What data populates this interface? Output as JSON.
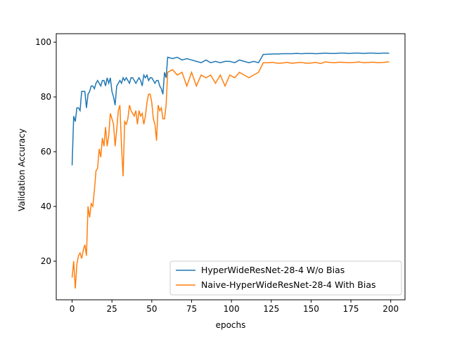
{
  "chart_data": {
    "type": "line",
    "x_label": "epochs",
    "y_label": "Validation Accuracy",
    "x": [
      0,
      1,
      2,
      3,
      4,
      5,
      6,
      7,
      8,
      9,
      10,
      11,
      12,
      13,
      14,
      15,
      16,
      17,
      18,
      19,
      20,
      21,
      22,
      23,
      24,
      25,
      26,
      27,
      28,
      29,
      30,
      31,
      32,
      33,
      34,
      35,
      36,
      37,
      38,
      39,
      40,
      41,
      42,
      43,
      44,
      45,
      46,
      47,
      48,
      49,
      50,
      51,
      52,
      53,
      54,
      55,
      56,
      57,
      58,
      59,
      60,
      63,
      66,
      69,
      72,
      75,
      78,
      81,
      84,
      87,
      90,
      93,
      96,
      99,
      102,
      105,
      108,
      111,
      114,
      117,
      120,
      123,
      126,
      129,
      132,
      135,
      138,
      141,
      144,
      147,
      150,
      153,
      156,
      159,
      162,
      165,
      168,
      171,
      174,
      177,
      180,
      183,
      186,
      189,
      192,
      195,
      198,
      199
    ],
    "series": [
      {
        "name": "HyperWideResNet-28-4 W/o Bias",
        "color": "#1f77b4",
        "values": [
          55,
          73,
          71,
          76,
          76,
          75,
          82,
          82,
          82,
          76,
          81,
          82,
          84,
          84,
          83,
          85,
          86,
          85,
          84,
          86,
          86,
          84,
          87,
          85,
          87,
          82,
          80,
          77,
          84,
          85,
          86,
          85,
          87,
          86,
          87,
          86,
          85,
          87,
          87,
          86,
          85,
          86,
          87,
          86,
          84,
          88,
          87,
          88,
          86,
          87,
          87,
          86,
          85,
          86,
          86,
          84,
          83,
          81,
          89,
          87,
          94.5,
          94,
          94.5,
          93.5,
          94,
          93.5,
          93,
          92.5,
          93.5,
          92.5,
          93,
          92.5,
          93,
          93,
          92.5,
          93.5,
          93,
          92.5,
          93,
          92.5,
          95.5,
          95.6,
          95.7,
          95.7,
          95.8,
          95.8,
          95.8,
          95.9,
          95.8,
          95.9,
          95.9,
          95.8,
          95.9,
          96,
          95.9,
          95.9,
          96,
          96,
          95.9,
          96,
          96,
          95.9,
          96,
          96,
          95.9,
          96,
          96,
          95.9
        ]
      },
      {
        "name": "Naive-HyperWideResNet-28-4 With Bias",
        "color": "#ff7f0e",
        "values": [
          14,
          20,
          10,
          19,
          22,
          23,
          21,
          24,
          26,
          22,
          40,
          36,
          41,
          40,
          46,
          53,
          54,
          61,
          58,
          65,
          62,
          69,
          62,
          66,
          74,
          72,
          70,
          62,
          68,
          75,
          77,
          62,
          51,
          71,
          70,
          72,
          77,
          75,
          74,
          73,
          75,
          70,
          75,
          73,
          74,
          70,
          73,
          78,
          81,
          81,
          78,
          72,
          70,
          64,
          77,
          75,
          76,
          72,
          72,
          77,
          89,
          90,
          88,
          89,
          84,
          89,
          84,
          88,
          87,
          88,
          85,
          88,
          84,
          88,
          87,
          89,
          88,
          87,
          88,
          89,
          92.5,
          92.5,
          92.6,
          92.3,
          92.4,
          92.6,
          92.3,
          92.5,
          92.6,
          92.3,
          92.4,
          92.6,
          92.2,
          92.8,
          92.6,
          92.5,
          92.7,
          92.6,
          92.5,
          92.6,
          92.8,
          92.5,
          92.6,
          92.7,
          92.5,
          92.6,
          92.8,
          92.7
        ]
      }
    ],
    "xlim": [
      -9.95,
      208.95
    ],
    "ylim": [
      5.9,
      103.1
    ],
    "xticks": [
      0,
      25,
      50,
      75,
      100,
      125,
      150,
      175,
      200
    ],
    "yticks": [
      20,
      40,
      60,
      80,
      100
    ],
    "legend": "lower right"
  }
}
